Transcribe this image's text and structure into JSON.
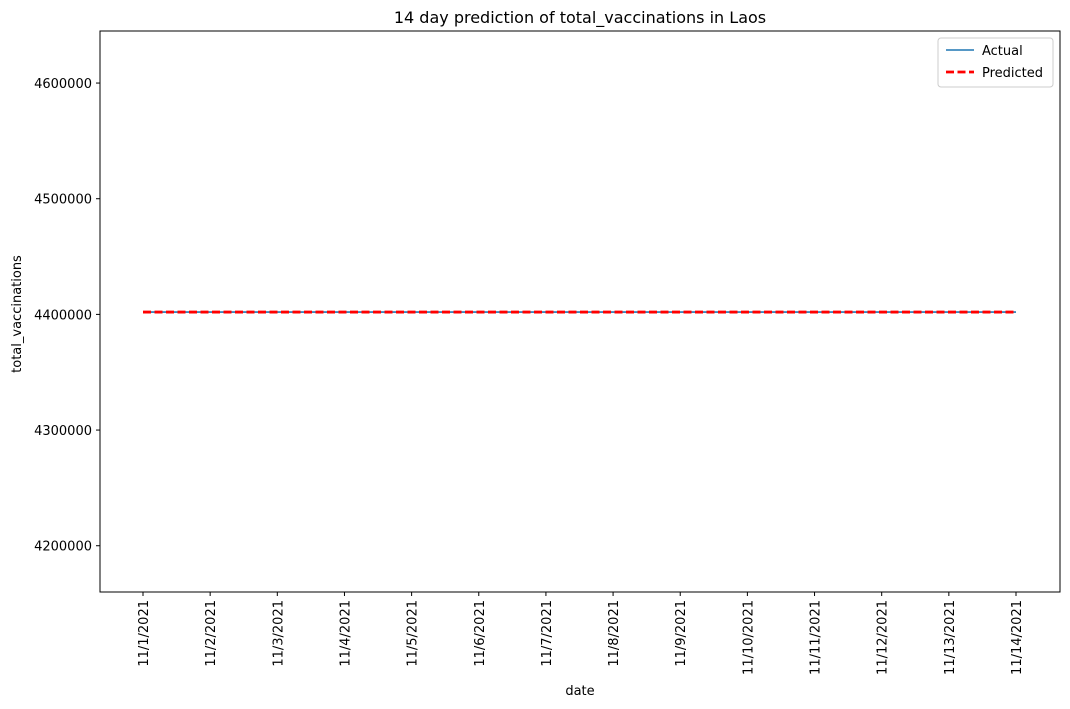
{
  "chart_data": {
    "type": "line",
    "title": "14 day prediction of total_vaccinations in Laos",
    "xlabel": "date",
    "ylabel": "total_vaccinations",
    "categories": [
      "11/1/2021",
      "11/2/2021",
      "11/3/2021",
      "11/4/2021",
      "11/5/2021",
      "11/6/2021",
      "11/7/2021",
      "11/8/2021",
      "11/9/2021",
      "11/10/2021",
      "11/11/2021",
      "11/12/2021",
      "11/13/2021",
      "11/14/2021"
    ],
    "ylim": [
      4160000,
      4645000
    ],
    "yticks": [
      4200000,
      4300000,
      4400000,
      4500000,
      4600000
    ],
    "grid": false,
    "legend_position": "top-right",
    "series": [
      {
        "name": "Actual",
        "color": "#1f77b4",
        "style": "solid",
        "values": [
          4402000,
          4402000,
          4402000,
          4402000,
          4402000,
          4402000,
          4402000,
          4402000,
          4402000,
          4402000,
          4402000,
          4402000,
          4402000,
          4402000
        ]
      },
      {
        "name": "Predicted",
        "color": "#ff0000",
        "style": "dashed",
        "values": [
          4402000,
          4402000,
          4402000,
          4402000,
          4402000,
          4402000,
          4402000,
          4402000,
          4402000,
          4402000,
          4402000,
          4402000,
          4402000,
          4402000
        ]
      }
    ]
  }
}
